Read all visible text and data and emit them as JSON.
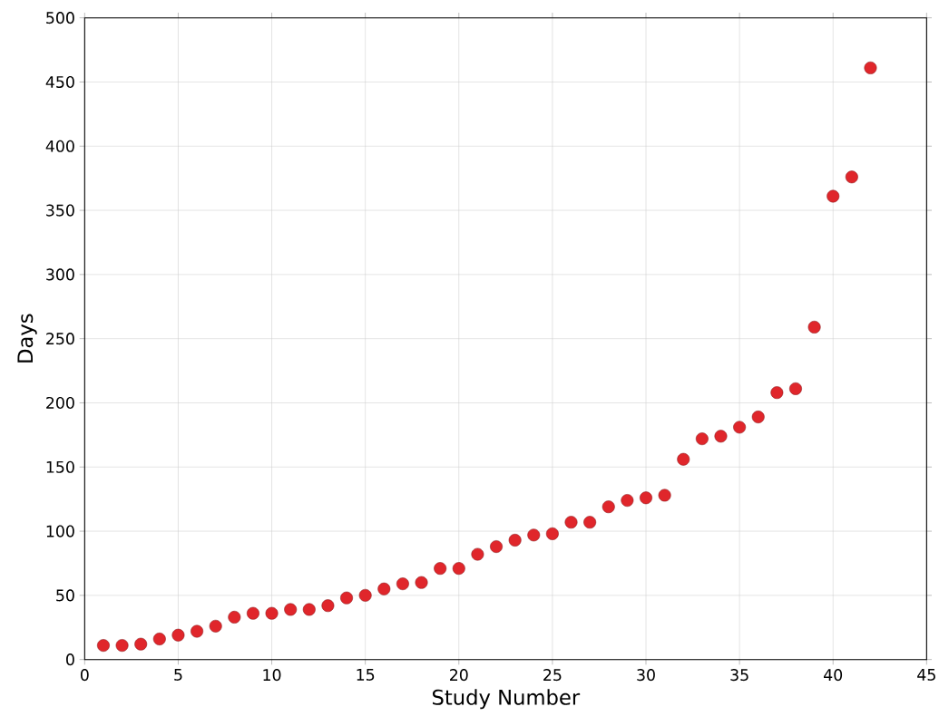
{
  "chart_data": {
    "type": "scatter",
    "xlabel": "Study Number",
    "ylabel": "Days",
    "x": [
      1,
      2,
      3,
      4,
      5,
      6,
      7,
      8,
      9,
      10,
      11,
      12,
      13,
      14,
      15,
      16,
      17,
      18,
      19,
      20,
      21,
      22,
      23,
      24,
      25,
      26,
      27,
      28,
      29,
      30,
      31,
      32,
      33,
      34,
      35,
      36,
      37,
      38,
      39,
      40,
      41,
      42
    ],
    "values": [
      11,
      11,
      12,
      16,
      19,
      22,
      26,
      33,
      36,
      36,
      39,
      39,
      42,
      48,
      50,
      55,
      59,
      60,
      71,
      71,
      82,
      88,
      93,
      97,
      98,
      107,
      107,
      119,
      124,
      126,
      128,
      156,
      172,
      174,
      181,
      189,
      208,
      211,
      259,
      361,
      376,
      461
    ],
    "color": "#e0262b",
    "marker": "circle",
    "xlim": [
      0,
      45
    ],
    "xticks": [
      0,
      5,
      10,
      15,
      20,
      25,
      30,
      35,
      40,
      45
    ],
    "ylim": [
      0,
      500
    ],
    "yticks": [
      0,
      50,
      100,
      150,
      200,
      250,
      300,
      350,
      400,
      450,
      500
    ],
    "grid": true
  }
}
